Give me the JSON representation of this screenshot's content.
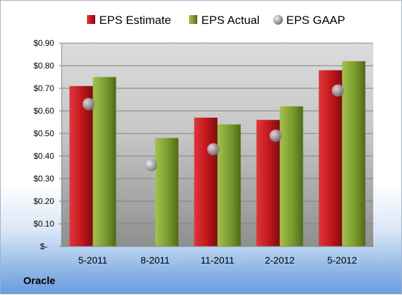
{
  "company_label": "Oracle",
  "colors": {
    "estimate": "#c0161c",
    "actual": "#7a9b2e",
    "gaap": "#9aa0a6"
  },
  "chart_data": {
    "type": "bar",
    "categories": [
      "5-2011",
      "8-2011",
      "11-2011",
      "2-2012",
      "5-2012"
    ],
    "series": [
      {
        "name": "EPS Estimate",
        "kind": "bar",
        "values": [
          0.71,
          null,
          0.57,
          0.56,
          0.78
        ]
      },
      {
        "name": "EPS Actual",
        "kind": "bar",
        "values": [
          0.75,
          0.48,
          0.54,
          0.62,
          0.82
        ]
      },
      {
        "name": "EPS GAAP",
        "kind": "marker",
        "values": [
          0.63,
          0.36,
          0.43,
          0.49,
          0.69
        ]
      }
    ],
    "yticks": [
      "$-",
      "$0.10",
      "$0.20",
      "$0.30",
      "$0.40",
      "$0.50",
      "$0.60",
      "$0.70",
      "$0.80",
      "$0.90"
    ],
    "ylim": [
      0,
      0.9
    ],
    "legend_position": "top",
    "grid": true
  }
}
